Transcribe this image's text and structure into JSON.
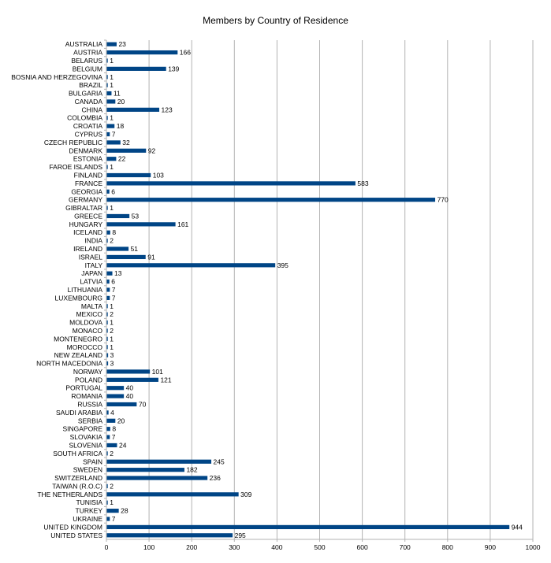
{
  "chart_data": {
    "type": "bar",
    "orientation": "horizontal",
    "title": "Members by Country of Residence",
    "xlim": [
      0,
      1000
    ],
    "x_ticks": [
      0,
      100,
      200,
      300,
      400,
      500,
      600,
      700,
      800,
      900,
      1000
    ],
    "grid": true,
    "legend": "none",
    "bar_color": "#004586",
    "categories": [
      "AUSTRALIA",
      "AUSTRIA",
      "BELARUS",
      "BELGIUM",
      "BOSNIA AND HERZEGOVINA",
      "BRAZIL",
      "BULGARIA",
      "CANADA",
      "CHINA",
      "COLOMBIA",
      "CROATIA",
      "CYPRUS",
      "CZECH REPUBLIC",
      "DENMARK",
      "ESTONIA",
      "FAROE ISLANDS",
      "FINLAND",
      "FRANCE",
      "GEORGIA",
      "GERMANY",
      "GIBRALTAR",
      "GREECE",
      "HUNGARY",
      "ICELAND",
      "INDIA",
      "IRELAND",
      "ISRAEL",
      "ITALY",
      "JAPAN",
      "LATVIA",
      "LITHUANIA",
      "LUXEMBOURG",
      "MALTA",
      "MEXICO",
      "MOLDOVA",
      "MONACO",
      "MONTENEGRO",
      "MOROCCO",
      "NEW ZEALAND",
      "NORTH MACEDONIA",
      "NORWAY",
      "POLAND",
      "PORTUGAL",
      "ROMANIA",
      "RUSSIA",
      "SAUDI ARABIA",
      "SERBIA",
      "SINGAPORE",
      "SLOVAKIA",
      "SLOVENIA",
      "SOUTH AFRICA",
      "SPAIN",
      "SWEDEN",
      "SWITZERLAND",
      "TAIWAN (R.O.C)",
      "THE NETHERLANDS",
      "TUNISIA",
      "TURKEY",
      "UKRAINE",
      "UNITED KINGDOM",
      "UNITED STATES"
    ],
    "values": [
      23,
      166,
      1,
      139,
      1,
      1,
      11,
      20,
      123,
      1,
      18,
      7,
      32,
      92,
      22,
      1,
      103,
      583,
      6,
      770,
      1,
      53,
      161,
      8,
      2,
      51,
      91,
      395,
      13,
      6,
      7,
      7,
      1,
      2,
      1,
      2,
      1,
      1,
      3,
      3,
      101,
      121,
      40,
      40,
      70,
      4,
      20,
      8,
      7,
      24,
      2,
      245,
      182,
      236,
      2,
      309,
      1,
      28,
      7,
      944,
      295
    ]
  }
}
